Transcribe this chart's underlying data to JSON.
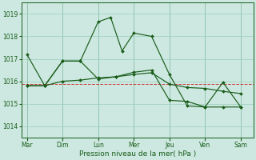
{
  "xlabel": "Pression niveau de la mer( hPa )",
  "ylim": [
    1013.5,
    1019.5
  ],
  "yticks": [
    1014,
    1015,
    1016,
    1017,
    1018,
    1019
  ],
  "day_labels": [
    "Mar",
    "Dim",
    "Lun",
    "Mer",
    "Jeu",
    "Ven",
    "Sam"
  ],
  "day_positions": [
    0,
    1,
    2,
    3,
    4,
    5,
    6
  ],
  "bg_color": "#cce8e0",
  "grid_color": "#99ccbb",
  "line_color": "#1a5c1a",
  "red_line_y": 1015.87,
  "series1_x": [
    0.0,
    0.5,
    1.0,
    1.5,
    2.0,
    2.35,
    2.67,
    3.0,
    3.5,
    4.0,
    4.5,
    5.0,
    5.5,
    6.0
  ],
  "series1_y": [
    1017.2,
    1015.8,
    1016.9,
    1016.9,
    1018.65,
    1018.85,
    1017.35,
    1018.15,
    1018.0,
    1016.3,
    1014.9,
    1014.85,
    1014.85,
    1014.85
  ],
  "series2_x": [
    0.0,
    0.5,
    1.0,
    1.5,
    2.0,
    2.5,
    3.0,
    3.5,
    4.0,
    4.5,
    5.0,
    5.5,
    6.0
  ],
  "series2_y": [
    1015.8,
    1015.8,
    1016.9,
    1016.9,
    1016.1,
    1016.2,
    1016.4,
    1016.5,
    1015.15,
    1015.1,
    1014.85,
    1015.95,
    1014.85
  ],
  "series3_x": [
    0.0,
    0.5,
    1.0,
    1.5,
    2.0,
    2.5,
    3.0,
    3.5,
    4.0,
    4.5,
    5.0,
    5.5,
    6.0
  ],
  "series3_y": [
    1015.8,
    1015.8,
    1016.0,
    1016.05,
    1016.15,
    1016.2,
    1016.3,
    1016.38,
    1015.87,
    1015.72,
    1015.68,
    1015.55,
    1015.45
  ],
  "xlim": [
    -0.15,
    6.35
  ],
  "marker_size": 2.0,
  "linewidth": 0.85
}
